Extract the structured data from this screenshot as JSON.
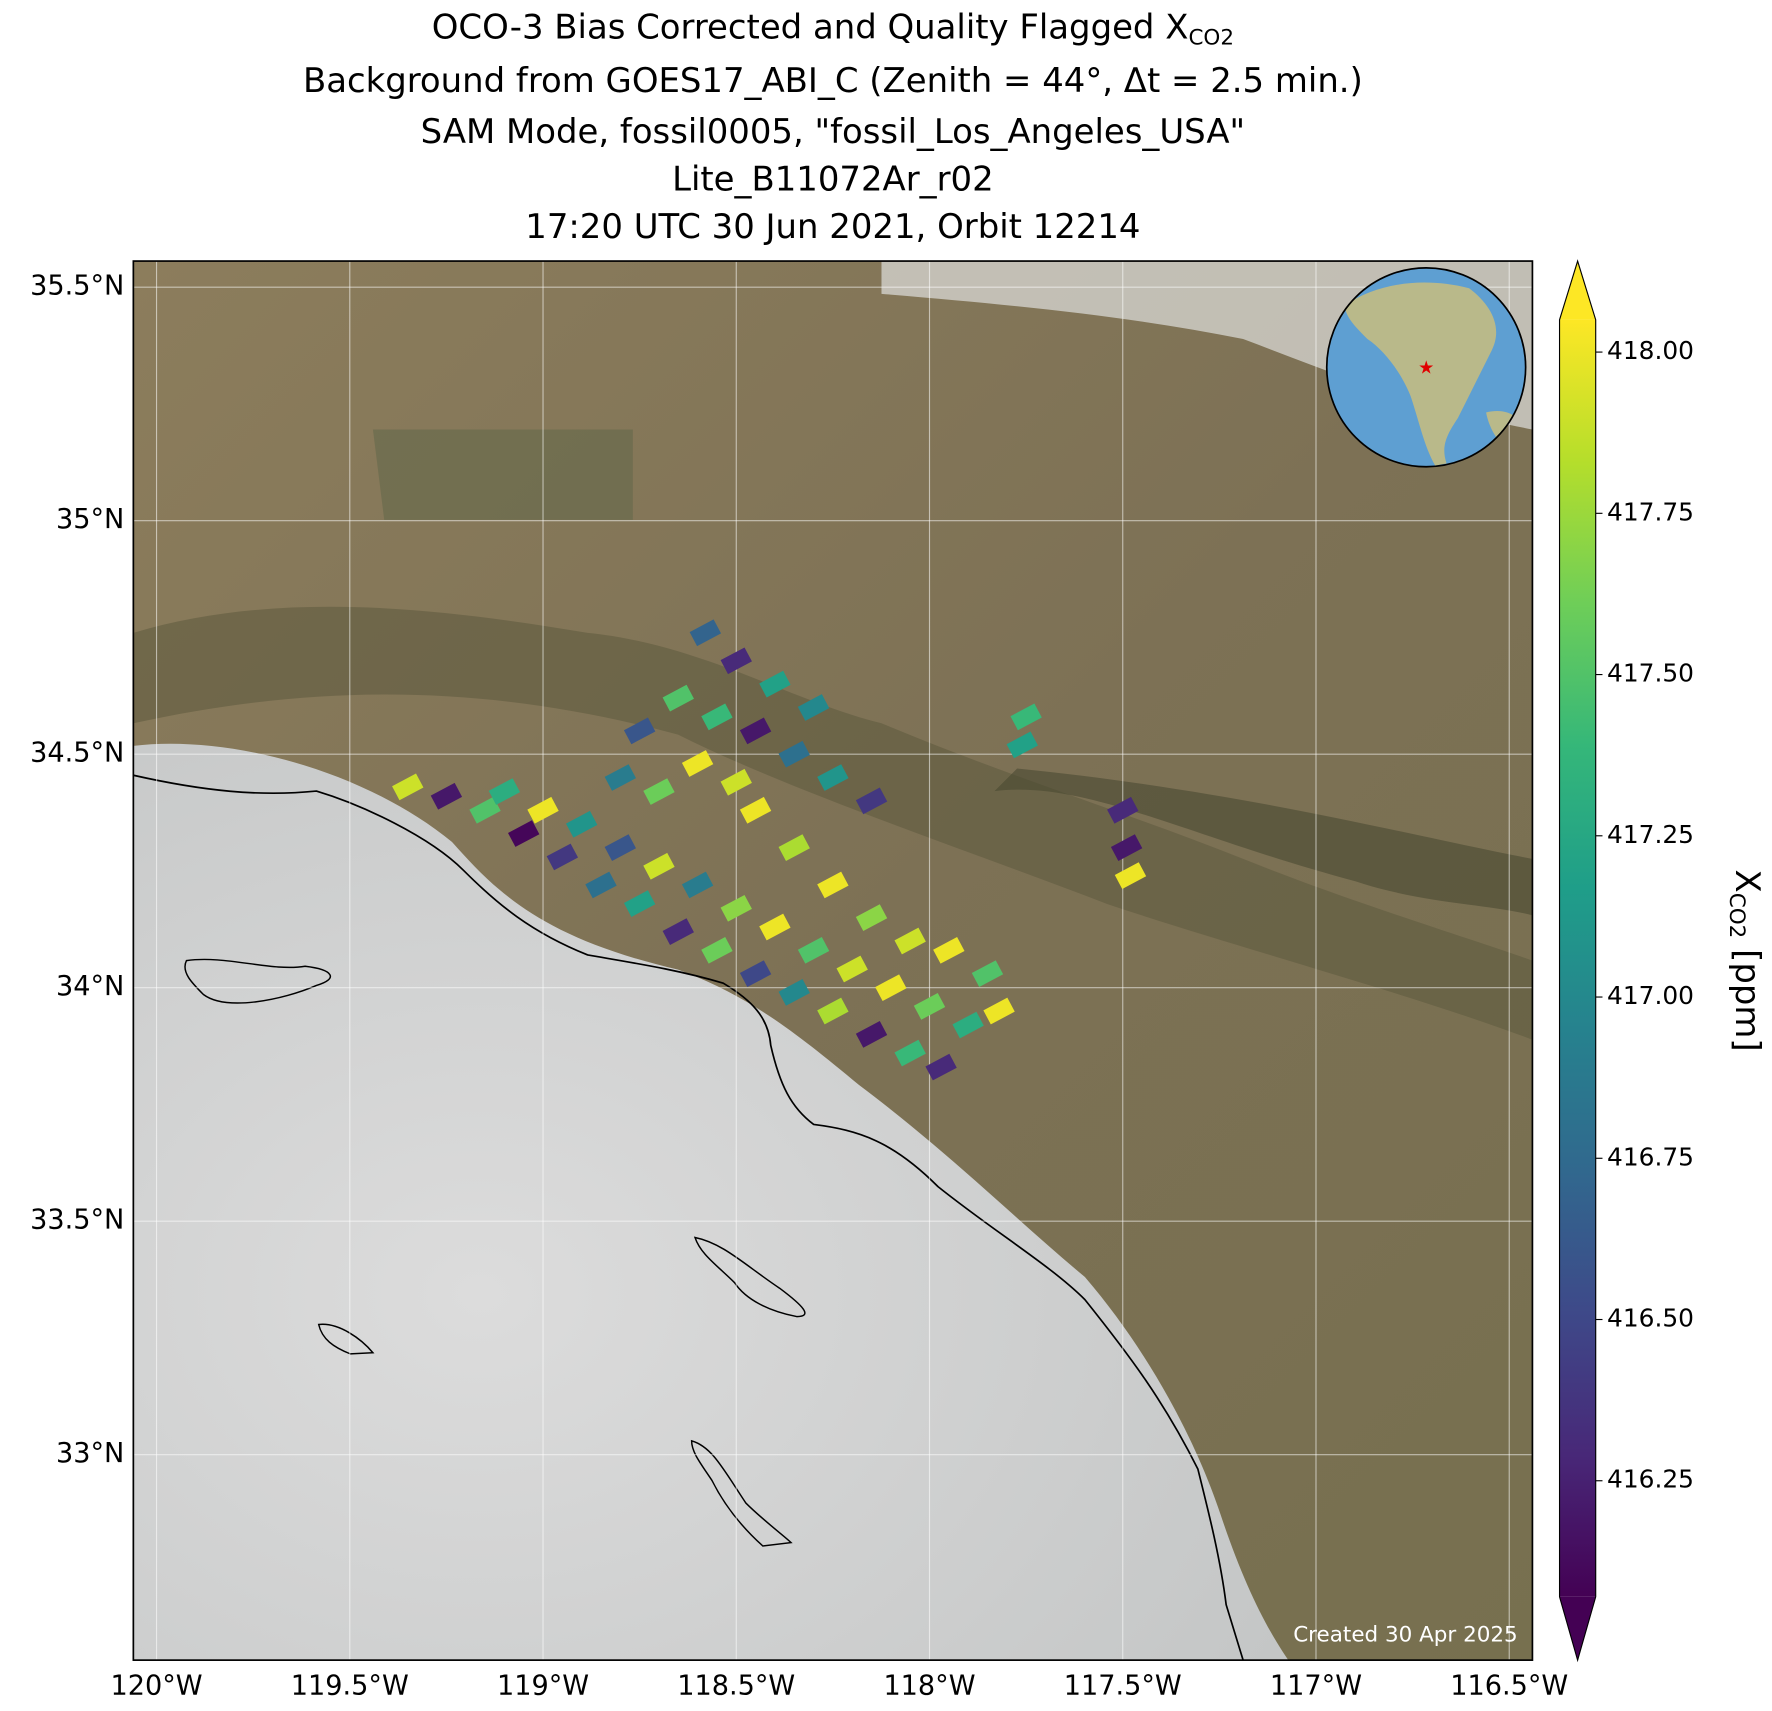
{
  "chart_data": {
    "type": "map",
    "title": {
      "line1": "OCO-3 Bias Corrected and Quality Flagged X",
      "line1_sub": "CO2",
      "line2": "Background from GOES17_ABI_C (Zenith = 44°, Δt =  2.5 min.)",
      "line3": "SAM Mode, fossil0005, \"fossil_Los_Angeles_USA\"",
      "line4": "Lite_B11072Ar_r02",
      "line5": "17:20 UTC 30 Jun 2021, Orbit 12214"
    },
    "annotation": "Created 30 Apr 2025",
    "xlim": [
      -120.06,
      -116.44
    ],
    "ylim": [
      32.56,
      35.556
    ],
    "xticks": [
      {
        "value": -120,
        "label": "120°W"
      },
      {
        "value": -119.5,
        "label": "119.5°W"
      },
      {
        "value": -119,
        "label": "119°W"
      },
      {
        "value": -118.5,
        "label": "118.5°W"
      },
      {
        "value": -118,
        "label": "118°W"
      },
      {
        "value": -117.5,
        "label": "117.5°W"
      },
      {
        "value": -117,
        "label": "117°W"
      },
      {
        "value": -116.5,
        "label": "116.5°W"
      }
    ],
    "yticks": [
      {
        "value": 33,
        "label": "33°N"
      },
      {
        "value": 33.5,
        "label": "33.5°N"
      },
      {
        "value": 34,
        "label": "34°N"
      },
      {
        "value": 34.5,
        "label": "34.5°N"
      },
      {
        "value": 35,
        "label": "35°N"
      },
      {
        "value": 35.5,
        "label": "35.5°N"
      }
    ],
    "grid": true,
    "colormap": "viridis",
    "clim": [
      416.07,
      418.05
    ],
    "cticks": [
      {
        "value": 416.25,
        "label": "416.25"
      },
      {
        "value": 416.5,
        "label": "416.50"
      },
      {
        "value": 416.75,
        "label": "416.75"
      },
      {
        "value": 417,
        "label": "417.00"
      },
      {
        "value": 417.25,
        "label": "417.25"
      },
      {
        "value": 417.5,
        "label": "417.50"
      },
      {
        "value": 417.75,
        "label": "417.75"
      },
      {
        "value": 418,
        "label": "418.00"
      }
    ],
    "colorbar_label": {
      "text": "X",
      "sub": "CO2",
      "unit": " [ppm]"
    },
    "soundings": {
      "lon": [
        -119.35,
        -119.25,
        -119.15,
        -119.05,
        -118.95,
        -118.85,
        -118.75,
        -118.65,
        -118.55,
        -118.45,
        -118.35,
        -118.25,
        -118.15,
        -118.05,
        -117.97,
        -119.1,
        -119.0,
        -118.9,
        -118.8,
        -118.7,
        -118.6,
        -118.5,
        -118.4,
        -118.3,
        -118.2,
        -118.1,
        -118.0,
        -117.9,
        -117.82,
        -118.8,
        -118.7,
        -118.6,
        -118.5,
        -118.45,
        -118.35,
        -118.25,
        -118.15,
        -118.05,
        -117.95,
        -117.85,
        -118.55,
        -118.45,
        -118.35,
        -118.25,
        -118.15,
        -118.5,
        -118.4,
        -118.3,
        -118.65,
        -118.75,
        -118.58,
        -117.75,
        -117.76,
        -117.5,
        -117.49,
        -117.48
      ],
      "lat": [
        34.43,
        34.41,
        34.38,
        34.33,
        34.28,
        34.22,
        34.18,
        34.12,
        34.08,
        34.03,
        33.99,
        33.95,
        33.9,
        33.86,
        33.83,
        34.42,
        34.38,
        34.35,
        34.3,
        34.26,
        34.22,
        34.17,
        34.13,
        34.08,
        34.04,
        34.0,
        33.96,
        33.92,
        33.95,
        34.45,
        34.42,
        34.48,
        34.44,
        34.38,
        34.3,
        34.22,
        34.15,
        34.1,
        34.08,
        34.03,
        34.58,
        34.55,
        34.5,
        34.45,
        34.4,
        34.7,
        34.65,
        34.6,
        34.62,
        34.55,
        34.76,
        34.58,
        34.52,
        34.38,
        34.3,
        34.24
      ],
      "xco2": [
        417.9,
        416.2,
        417.5,
        416.1,
        416.4,
        416.8,
        417.2,
        416.3,
        417.6,
        416.5,
        417.0,
        417.8,
        416.2,
        417.4,
        416.3,
        417.3,
        418.0,
        417.1,
        416.6,
        417.9,
        416.9,
        417.7,
        418.0,
        417.5,
        417.9,
        418.0,
        417.6,
        417.3,
        418.0,
        416.9,
        417.6,
        418.0,
        417.9,
        418.0,
        417.8,
        418.0,
        417.7,
        417.9,
        418.0,
        417.5,
        417.4,
        416.2,
        416.8,
        417.1,
        416.4,
        416.3,
        417.2,
        417.0,
        417.5,
        416.6,
        416.7,
        417.4,
        417.2,
        416.3,
        416.2,
        418.0
      ]
    }
  }
}
